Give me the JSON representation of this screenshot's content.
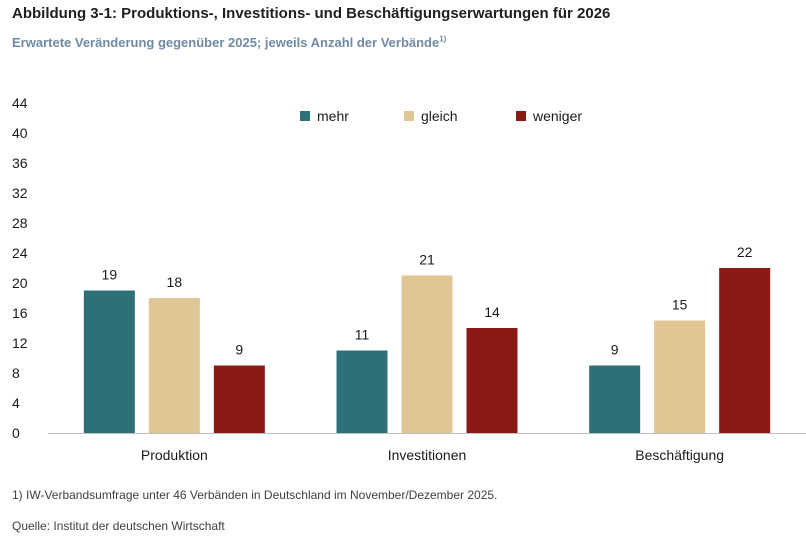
{
  "title": "Abbildung 3-1: Produktions-, Investitions- und Beschäftigungserwartungen für 2026",
  "subtitle": "Erwartete Veränderung gegenüber 2025; jeweils Anzahl der Verbände",
  "subtitle_note": "1)",
  "footnote": "1) IW-Verbandsumfrage unter 46 Verbänden in Deutschland im November/Dezember 2025.",
  "source": "Quelle: Institut der deutschen Wirtschaft",
  "chart_data": {
    "type": "bar",
    "categories": [
      "Produktion",
      "Investitionen",
      "Beschäftigung"
    ],
    "series": [
      {
        "name": "mehr",
        "color": "#2e6f78",
        "values": [
          19,
          11,
          9
        ]
      },
      {
        "name": "gleich",
        "color": "#e0c595",
        "values": [
          18,
          21,
          15
        ]
      },
      {
        "name": "weniger",
        "color": "#8c1a14",
        "values": [
          9,
          14,
          22
        ]
      }
    ],
    "ylim": [
      0,
      44
    ],
    "yticks": [
      0,
      4,
      8,
      12,
      16,
      20,
      24,
      28,
      32,
      36,
      40,
      44
    ],
    "xlabel": "",
    "ylabel": "",
    "legend_position": "top-center",
    "grid": false,
    "data_labels": true
  }
}
